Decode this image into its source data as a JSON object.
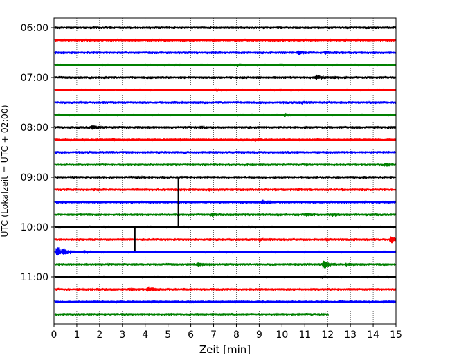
{
  "chart_data": {
    "type": "line",
    "subtype": "helicorder",
    "title": "",
    "xlabel": "Zeit  [min]",
    "ylabel": "UTC (Lokalzeit = UTC + 02:00)",
    "xlim": [
      0,
      15
    ],
    "x_ticks": [
      "0",
      "1",
      "2",
      "3",
      "4",
      "5",
      "6",
      "7",
      "8",
      "9",
      "10",
      "11",
      "12",
      "13",
      "14",
      "15"
    ],
    "y_ticks": [
      "06:00",
      "07:00",
      "08:00",
      "09:00",
      "10:00",
      "11:00"
    ],
    "grid": "vertical dotted",
    "trace_colors": [
      "#000000",
      "#ff0000",
      "#0000ff",
      "#008000"
    ],
    "rows": [
      {
        "start": "06:00",
        "end_min": 15
      },
      {
        "start": "06:15",
        "end_min": 15
      },
      {
        "start": "06:30",
        "end_min": 15,
        "events": [
          {
            "t": 10.7,
            "amp": 0.55
          },
          {
            "t": 11.9,
            "amp": 0.35
          }
        ]
      },
      {
        "start": "06:45",
        "end_min": 15,
        "events": [
          {
            "t": 8.0,
            "amp": 0.3
          },
          {
            "t": 9.9,
            "amp": 0.15
          }
        ]
      },
      {
        "start": "07:00",
        "end_min": 15,
        "events": [
          {
            "t": 11.5,
            "amp": 0.7
          },
          {
            "t": 12.2,
            "amp": 0.2
          }
        ]
      },
      {
        "start": "07:15",
        "end_min": 15,
        "events": [
          {
            "t": 7.1,
            "amp": 0.15
          }
        ]
      },
      {
        "start": "07:30",
        "end_min": 15,
        "events": [
          {
            "t": 10.8,
            "amp": 0.25
          }
        ]
      },
      {
        "start": "07:45",
        "end_min": 15,
        "events": [
          {
            "t": 8.3,
            "amp": 0.15
          },
          {
            "t": 10.1,
            "amp": 0.4
          }
        ]
      },
      {
        "start": "08:00",
        "end_min": 15,
        "events": [
          {
            "t": 1.65,
            "amp": 0.7
          },
          {
            "t": 6.4,
            "amp": 0.15
          }
        ]
      },
      {
        "start": "08:15",
        "end_min": 15,
        "events": [
          {
            "t": 2.5,
            "amp": 0.2
          },
          {
            "t": 8.8,
            "amp": 0.2
          }
        ]
      },
      {
        "start": "08:30",
        "end_min": 15
      },
      {
        "start": "08:45",
        "end_min": 15,
        "events": [
          {
            "t": 14.5,
            "amp": 0.5
          }
        ]
      },
      {
        "start": "09:00",
        "end_min": 15,
        "events": [
          {
            "t": 3.6,
            "amp": 0.2
          }
        ]
      },
      {
        "start": "09:15",
        "end_min": 15,
        "events": [
          {
            "t": 6.8,
            "amp": 0.2
          },
          {
            "t": 10.7,
            "amp": 0.15
          }
        ]
      },
      {
        "start": "09:30",
        "end_min": 15,
        "events": [
          {
            "t": 9.1,
            "amp": 0.6
          }
        ]
      },
      {
        "start": "09:45",
        "end_min": 15,
        "events": [
          {
            "t": 6.9,
            "amp": 0.5
          },
          {
            "t": 11.0,
            "amp": 0.4
          },
          {
            "t": 12.2,
            "amp": 0.55
          }
        ]
      },
      {
        "start": "10:00",
        "end_min": 15,
        "events": [
          {
            "t": 8.5,
            "amp": 0.15
          }
        ]
      },
      {
        "start": "10:15",
        "end_min": 15,
        "events": [
          {
            "t": 9.0,
            "amp": 0.25
          },
          {
            "t": 11.9,
            "amp": 0.2
          },
          {
            "t": 14.75,
            "amp": 1.2
          }
        ]
      },
      {
        "start": "10:30",
        "end_min": 15,
        "events": [
          {
            "t": 0.1,
            "amp": 1.9
          },
          {
            "t": 0.4,
            "amp": 1.0
          },
          {
            "t": 1.3,
            "amp": 0.4
          }
        ]
      },
      {
        "start": "10:45",
        "end_min": 15,
        "events": [
          {
            "t": 6.3,
            "amp": 0.5
          },
          {
            "t": 11.8,
            "amp": 1.6
          },
          {
            "t": 12.8,
            "amp": 0.3
          }
        ]
      },
      {
        "start": "11:00",
        "end_min": 15,
        "events": [
          {
            "t": 11.7,
            "amp": 0.2
          }
        ]
      },
      {
        "start": "11:15",
        "end_min": 15,
        "events": [
          {
            "t": 4.1,
            "amp": 0.9
          },
          {
            "t": 3.3,
            "amp": 0.3
          }
        ]
      },
      {
        "start": "11:30",
        "end_min": 15,
        "events": [
          {
            "t": 12.5,
            "amp": 0.15
          }
        ]
      },
      {
        "start": "11:45",
        "end_min": 12.05
      }
    ],
    "spikes": [
      {
        "row": 12,
        "t": 5.45,
        "to_row": 16
      },
      {
        "row": 16,
        "t": 3.55,
        "to_row": 18
      }
    ]
  }
}
